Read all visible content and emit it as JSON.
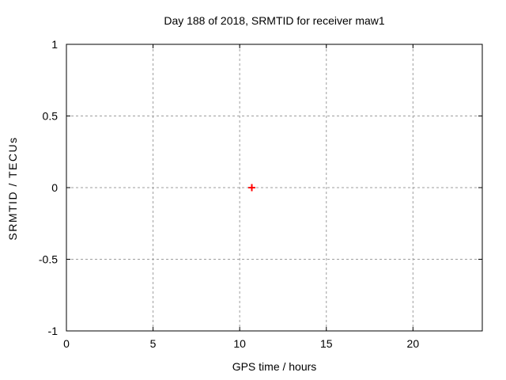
{
  "chart_data": {
    "type": "scatter",
    "title": "Day 188 of 2018, SRMTID for receiver maw1",
    "xlabel": "GPS time / hours",
    "ylabel": "SRMTID / TECUs",
    "xlim": [
      0,
      24
    ],
    "ylim": [
      -1,
      1
    ],
    "xticks": [
      0,
      5,
      10,
      15,
      20
    ],
    "xtick_labels": [
      "0",
      "5",
      "10",
      "15",
      "20"
    ],
    "yticks": [
      -1,
      -0.5,
      0,
      0.5,
      1
    ],
    "ytick_labels": [
      "-1",
      "-0.5",
      "0",
      "0.5",
      "1"
    ],
    "grid": true,
    "legend": "none",
    "series": [
      {
        "marker": "plus",
        "marker_size": 9,
        "color": "#ff0000",
        "points": [
          {
            "x": 10.7,
            "y": 0.0
          }
        ]
      }
    ],
    "colors": {
      "background": "#ffffff",
      "axis": "#000000",
      "grid": "#9e9e9e",
      "text": "#000000",
      "point": "#ff0000"
    }
  }
}
